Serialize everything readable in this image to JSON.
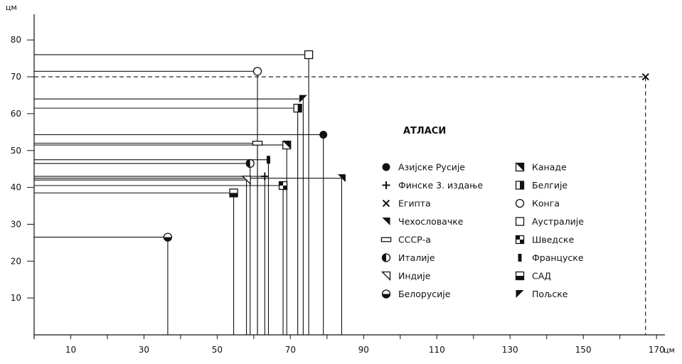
{
  "chart_data": {
    "type": "scatter",
    "title": "",
    "xlabel": "",
    "ylabel": "",
    "x_unit": "цм",
    "y_unit": "цм",
    "xlim": [
      0,
      175
    ],
    "ylim": [
      0,
      85
    ],
    "x_ticks_labeled": [
      10,
      30,
      50,
      70,
      90,
      110,
      130,
      150,
      170
    ],
    "x_ticks_minor": [
      20,
      40,
      60,
      80,
      100,
      120,
      140,
      160
    ],
    "y_ticks": [
      10,
      20,
      30,
      40,
      50,
      60,
      70,
      80
    ],
    "grid": false,
    "legend": {
      "title": "АТЛАСИ",
      "placement": "right",
      "columns": 2
    },
    "series": [
      {
        "name": "Азијске Русије",
        "marker": "filled-circle",
        "x": 79,
        "y": 54.3
      },
      {
        "name": "Финске 3. издање",
        "marker": "plus",
        "x": 63,
        "y": 43
      },
      {
        "name": "Египта",
        "marker": "cross",
        "x": 167,
        "y": 70
      },
      {
        "name": "Чехословачке",
        "marker": "triangle-filled",
        "x": 84,
        "y": 42.5
      },
      {
        "name": "СССР-а",
        "marker": "rect-open-bar",
        "x": 61,
        "y": 52
      },
      {
        "name": "Италије",
        "marker": "half-circle-left",
        "x": 59,
        "y": 46.5
      },
      {
        "name": "Индије",
        "marker": "triangle-open",
        "x": 58,
        "y": 42
      },
      {
        "name": "Белорусије",
        "marker": "half-circle-bottom",
        "x": 36.5,
        "y": 26.5
      },
      {
        "name": "Канаде",
        "marker": "square-diag",
        "x": 69,
        "y": 51.5
      },
      {
        "name": "Белгије",
        "marker": "square-half-right",
        "x": 72,
        "y": 61.5
      },
      {
        "name": "Конга",
        "marker": "open-circle",
        "x": 61,
        "y": 71.5
      },
      {
        "name": "Аустралије",
        "marker": "open-square",
        "x": 75,
        "y": 76
      },
      {
        "name": "Шведске",
        "marker": "square-checker",
        "x": 68,
        "y": 40.5
      },
      {
        "name": "Француске",
        "marker": "filled-bar",
        "x": 64,
        "y": 47.5
      },
      {
        "name": "САД",
        "marker": "square-half-bottom",
        "x": 54.5,
        "y": 38.5
      },
      {
        "name": "Пољске",
        "marker": "triangle-filled-left",
        "x": 73.5,
        "y": 64
      }
    ]
  }
}
